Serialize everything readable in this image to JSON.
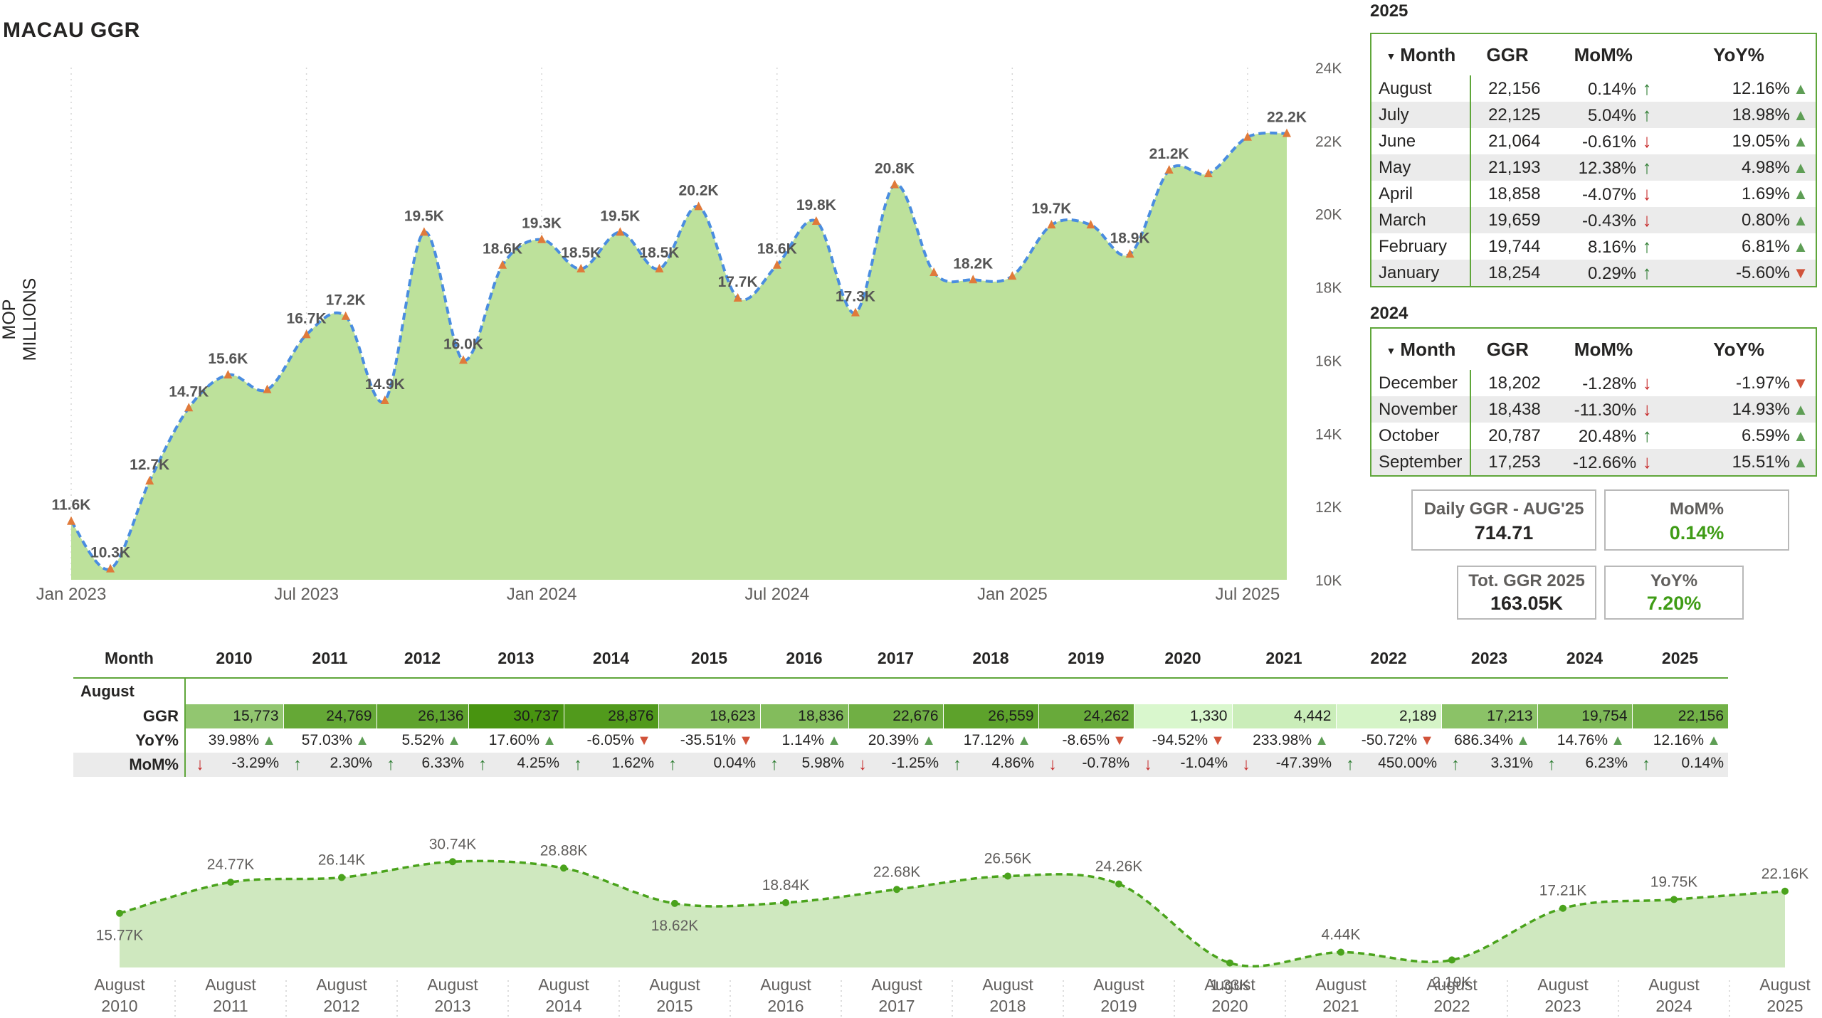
{
  "title": "MACAU GGR",
  "y_axis_label": "MOP MILLIONS",
  "main_chart": {
    "chart_data": {
      "type": "area",
      "x": [
        "Jan 2023",
        "Feb 2023",
        "Mar 2023",
        "Apr 2023",
        "May 2023",
        "Jun 2023",
        "Jul 2023",
        "Aug 2023",
        "Sep 2023",
        "Oct 2023",
        "Nov 2023",
        "Dec 2023",
        "Jan 2024",
        "Feb 2024",
        "Mar 2024",
        "Apr 2024",
        "May 2024",
        "Jun 2024",
        "Jul 2024",
        "Aug 2024",
        "Sep 2024",
        "Oct 2024",
        "Nov 2024",
        "Dec 2024",
        "Jan 2025",
        "Feb 2025",
        "Mar 2025",
        "Apr 2025",
        "May 2025",
        "Jun 2025",
        "Jul 2025",
        "Aug 2025"
      ],
      "values": [
        11.6,
        10.3,
        12.7,
        14.7,
        15.6,
        15.2,
        16.7,
        17.2,
        14.9,
        19.5,
        16.0,
        18.6,
        19.3,
        18.5,
        19.5,
        18.5,
        20.2,
        17.7,
        18.6,
        19.8,
        17.3,
        20.8,
        18.4,
        18.2,
        18.3,
        19.7,
        19.7,
        18.9,
        21.2,
        21.1,
        22.1,
        22.2
      ],
      "point_labels": [
        "11.6K",
        "10.3K",
        "12.7K",
        "14.7K",
        "15.6K",
        "",
        "16.7K",
        "17.2K",
        "14.9K",
        "19.5K",
        "16.0K",
        "18.6K",
        "19.3K",
        "18.5K",
        "19.5K",
        "18.5K",
        "20.2K",
        "17.7K",
        "18.6K",
        "19.8K",
        "17.3K",
        "20.8K",
        "",
        "18.2K",
        "",
        "19.7K",
        "",
        "18.9K",
        "21.2K",
        "",
        "",
        "22.2K"
      ],
      "x_ticks": [
        "Jan 2023",
        "Jul 2023",
        "Jan 2024",
        "Jul 2024",
        "Jan 2025",
        "Jul 2025"
      ],
      "y_ticks": [
        "10K",
        "12K",
        "14K",
        "16K",
        "18K",
        "20K",
        "22K",
        "24K"
      ],
      "ylim": [
        10,
        24
      ],
      "ylabel": "MOP MILLIONS",
      "colors": {
        "area": "#bde19b",
        "line": "#4a8de0",
        "marker": "#e07a3a"
      }
    }
  },
  "table_2025": {
    "year": "2025",
    "headers": [
      "Month",
      "GGR",
      "MoM%",
      "YoY%"
    ],
    "rows": [
      {
        "month": "August",
        "ggr": "22,156",
        "mom": "0.14%",
        "mom_dir": "up",
        "yoy": "12.16%",
        "yoy_dir": "up"
      },
      {
        "month": "July",
        "ggr": "22,125",
        "mom": "5.04%",
        "mom_dir": "up",
        "yoy": "18.98%",
        "yoy_dir": "up"
      },
      {
        "month": "June",
        "ggr": "21,064",
        "mom": "-0.61%",
        "mom_dir": "down",
        "yoy": "19.05%",
        "yoy_dir": "up"
      },
      {
        "month": "May",
        "ggr": "21,193",
        "mom": "12.38%",
        "mom_dir": "up",
        "yoy": "4.98%",
        "yoy_dir": "up"
      },
      {
        "month": "April",
        "ggr": "18,858",
        "mom": "-4.07%",
        "mom_dir": "down",
        "yoy": "1.69%",
        "yoy_dir": "up"
      },
      {
        "month": "March",
        "ggr": "19,659",
        "mom": "-0.43%",
        "mom_dir": "down",
        "yoy": "0.80%",
        "yoy_dir": "up"
      },
      {
        "month": "February",
        "ggr": "19,744",
        "mom": "8.16%",
        "mom_dir": "up",
        "yoy": "6.81%",
        "yoy_dir": "up"
      },
      {
        "month": "January",
        "ggr": "18,254",
        "mom": "0.29%",
        "mom_dir": "up",
        "yoy": "-5.60%",
        "yoy_dir": "down"
      }
    ]
  },
  "table_2024": {
    "year": "2024",
    "headers": [
      "Month",
      "GGR",
      "MoM%",
      "YoY%"
    ],
    "rows": [
      {
        "month": "December",
        "ggr": "18,202",
        "mom": "-1.28%",
        "mom_dir": "down",
        "yoy": "-1.97%",
        "yoy_dir": "down"
      },
      {
        "month": "November",
        "ggr": "18,438",
        "mom": "-11.30%",
        "mom_dir": "down",
        "yoy": "14.93%",
        "yoy_dir": "up"
      },
      {
        "month": "October",
        "ggr": "20,787",
        "mom": "20.48%",
        "mom_dir": "up",
        "yoy": "6.59%",
        "yoy_dir": "up"
      },
      {
        "month": "September",
        "ggr": "17,253",
        "mom": "-12.66%",
        "mom_dir": "down",
        "yoy": "15.51%",
        "yoy_dir": "up"
      }
    ]
  },
  "cards": {
    "daily": {
      "label": "Daily GGR - AUG'25",
      "value": "714.71"
    },
    "mom": {
      "label": "MoM%",
      "value": "0.14%"
    },
    "total": {
      "label": "Tot. GGR 2025",
      "value": "163.05K"
    },
    "yoy": {
      "label": "YoY%",
      "value": "7.20%"
    }
  },
  "august_table": {
    "header_month": "Month",
    "group_label": "August",
    "row_labels": {
      "ggr": "GGR",
      "yoy": "YoY%",
      "mom": "MoM%"
    },
    "years": [
      "2010",
      "2011",
      "2012",
      "2013",
      "2014",
      "2015",
      "2016",
      "2017",
      "2018",
      "2019",
      "2020",
      "2021",
      "2022",
      "2023",
      "2024",
      "2025"
    ],
    "ggr": [
      "15,773",
      "24,769",
      "26,136",
      "30,737",
      "28,876",
      "18,623",
      "18,836",
      "22,676",
      "26,559",
      "24,262",
      "1,330",
      "4,442",
      "2,189",
      "17,213",
      "19,754",
      "22,156"
    ],
    "ggr_values": [
      15773,
      24769,
      26136,
      30737,
      28876,
      18623,
      18836,
      22676,
      26559,
      24262,
      1330,
      4442,
      2189,
      17213,
      19754,
      22156
    ],
    "yoy": [
      "39.98%",
      "57.03%",
      "5.52%",
      "17.60%",
      "-6.05%",
      "-35.51%",
      "1.14%",
      "20.39%",
      "17.12%",
      "-8.65%",
      "-94.52%",
      "233.98%",
      "-50.72%",
      "686.34%",
      "14.76%",
      "12.16%"
    ],
    "yoy_dir": [
      "up",
      "up",
      "up",
      "up",
      "down",
      "down",
      "up",
      "up",
      "up",
      "down",
      "down",
      "up",
      "down",
      "up",
      "up",
      "up"
    ],
    "mom": [
      "-3.29%",
      "2.30%",
      "6.33%",
      "4.25%",
      "1.62%",
      "0.04%",
      "5.98%",
      "-1.25%",
      "4.86%",
      "-0.78%",
      "-1.04%",
      "-47.39%",
      "450.00%",
      "3.31%",
      "6.23%",
      "0.14%"
    ],
    "mom_dir": [
      "down",
      "up",
      "up",
      "up",
      "up",
      "up",
      "up",
      "down",
      "up",
      "down",
      "down",
      "down",
      "up",
      "up",
      "up",
      "up"
    ]
  },
  "august_chart": {
    "chart_data": {
      "type": "area",
      "x": [
        "August 2010",
        "August 2011",
        "August 2012",
        "August 2013",
        "August 2014",
        "August 2015",
        "August 2016",
        "August 2017",
        "August 2018",
        "August 2019",
        "August 2020",
        "August 2021",
        "August 2022",
        "August 2023",
        "August 2024",
        "August 2025"
      ],
      "values": [
        15.77,
        24.77,
        26.14,
        30.74,
        28.88,
        18.62,
        18.84,
        22.68,
        26.56,
        24.26,
        1.33,
        4.44,
        2.19,
        17.21,
        19.75,
        22.16
      ],
      "point_labels": [
        "15.77K",
        "24.77K",
        "26.14K",
        "30.74K",
        "28.88K",
        "18.62K",
        "18.84K",
        "22.68K",
        "26.56K",
        "24.26K",
        "1.33K",
        "4.44K",
        "2.19K",
        "17.21K",
        "19.75K",
        "22.16K"
      ],
      "x_tick_line1": "August",
      "x_tick_years": [
        "2010",
        "2011",
        "2012",
        "2013",
        "2014",
        "2015",
        "2016",
        "2017",
        "2018",
        "2019",
        "2020",
        "2021",
        "2022",
        "2023",
        "2024",
        "2025"
      ],
      "colors": {
        "area": "#cfe8bf",
        "line": "#4aa31c"
      }
    }
  }
}
